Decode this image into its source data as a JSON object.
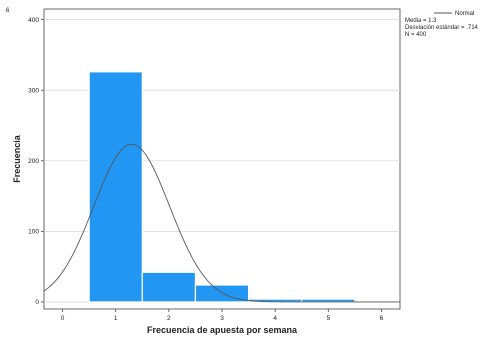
{
  "corner_mark": "6",
  "chart_data": {
    "type": "bar",
    "title": "",
    "xlabel": "Frecuencia de apuesta por semana",
    "ylabel": "Frecuencia",
    "x_ticks": [
      "0",
      "1",
      "2",
      "3",
      "4",
      "5",
      "6"
    ],
    "x_tick_values": [
      0,
      1,
      2,
      3,
      4,
      5,
      6
    ],
    "xlim": [
      -0.35,
      6.35
    ],
    "y_ticks": [
      "0",
      "100",
      "200",
      "300",
      "400"
    ],
    "y_tick_values": [
      0,
      100,
      200,
      300,
      400
    ],
    "ylim": [
      -10,
      415
    ],
    "grid": "horizontal",
    "bars": [
      {
        "x": 1,
        "value": 326
      },
      {
        "x": 2,
        "value": 42
      },
      {
        "x": 3,
        "value": 24
      },
      {
        "x": 4,
        "value": 4
      },
      {
        "x": 5,
        "value": 4
      }
    ],
    "bar_width": 1,
    "bar_color": "#2196F3",
    "normal_curve": {
      "name": "Normal",
      "mean": 1.3,
      "sd": 0.714,
      "n": 400,
      "bin_width": 1
    },
    "legend": {
      "position": "top-right",
      "entries": [
        "Normal"
      ]
    },
    "stats": [
      "Media = 1.3",
      "Desviación estándar = .714",
      "N = 400"
    ]
  }
}
